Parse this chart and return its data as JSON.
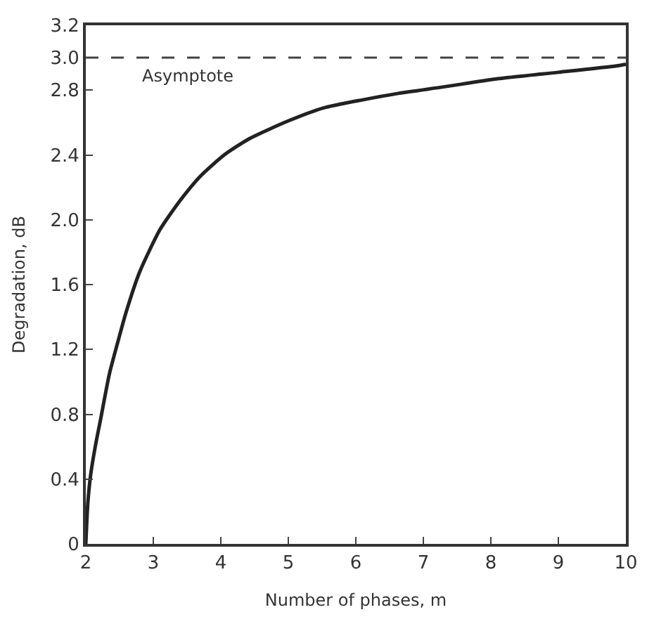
{
  "chart_data": {
    "type": "line",
    "xlabel": "Number of phases, m",
    "ylabel": "Degradation, dB",
    "series": [
      {
        "color": "#222222",
        "x": [
          2,
          2.03,
          2.07,
          2.14,
          2.22,
          2.35,
          2.51,
          2.59,
          2.8,
          3.1,
          3.4,
          3.7,
          4.05,
          4.42,
          5.0,
          5.52,
          6.1,
          6.63,
          7.3,
          8.1,
          9.0,
          9.86,
          10
        ],
        "values": [
          0,
          0.25,
          0.42,
          0.6,
          0.77,
          1.05,
          1.3,
          1.42,
          1.68,
          1.94,
          2.12,
          2.27,
          2.4,
          2.5,
          2.61,
          2.69,
          2.74,
          2.78,
          2.82,
          2.87,
          2.91,
          2.95,
          2.96
        ]
      }
    ],
    "xlim": [
      2,
      10
    ],
    "xticks": [
      2,
      3,
      4,
      5,
      6,
      7,
      8,
      9,
      10
    ],
    "ylim": [
      0,
      3.2
    ],
    "yticks": [
      0,
      0.4,
      0.8,
      1.2,
      1.6,
      {
        "value": 2,
        "label": "2.0"
      },
      2.4,
      2.8,
      {
        "value": 3,
        "label": "3.0"
      },
      3.2
    ],
    "ref_lines": [
      {
        "axis": "y",
        "value": 3,
        "label": "Asymptote",
        "color": "#444444",
        "line_style": "dashed"
      }
    ],
    "line_style": "solid",
    "marker": "none"
  }
}
